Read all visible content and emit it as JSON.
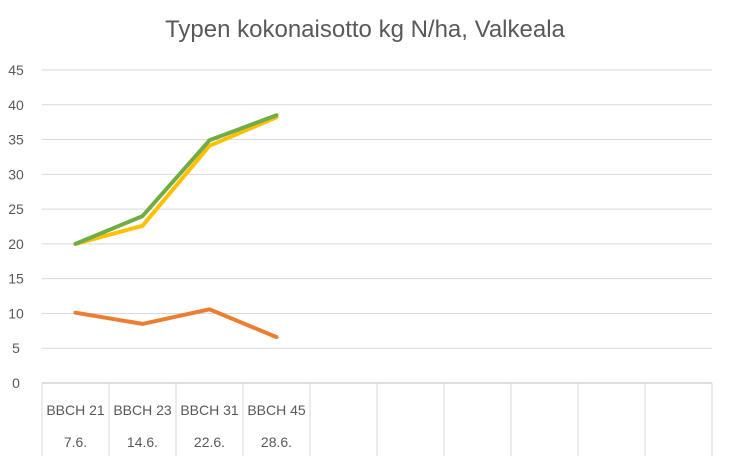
{
  "chart_data": {
    "type": "line",
    "title": "Typen kokonaisotto kg N/ha, Valkeala",
    "xlabel": "",
    "ylabel": "",
    "ylim": [
      0,
      45
    ],
    "ytick_step": 5,
    "grid": true,
    "legend": "none",
    "category_slots": 10,
    "categories": [
      {
        "stage": "BBCH 21",
        "date": "7.6."
      },
      {
        "stage": "BBCH 23",
        "date": "14.6."
      },
      {
        "stage": "BBCH 31",
        "date": "22.6."
      },
      {
        "stage": "BBCH 45",
        "date": "28.6."
      }
    ],
    "series": [
      {
        "color": "#ED7D31",
        "values": [
          10.1,
          8.5,
          10.6,
          6.6
        ]
      },
      {
        "color": "#FFC000",
        "values": [
          20.0,
          22.6,
          34.1,
          38.2
        ]
      },
      {
        "color": "#70AD47",
        "values": [
          20.0,
          24.0,
          34.9,
          38.5
        ]
      }
    ]
  }
}
